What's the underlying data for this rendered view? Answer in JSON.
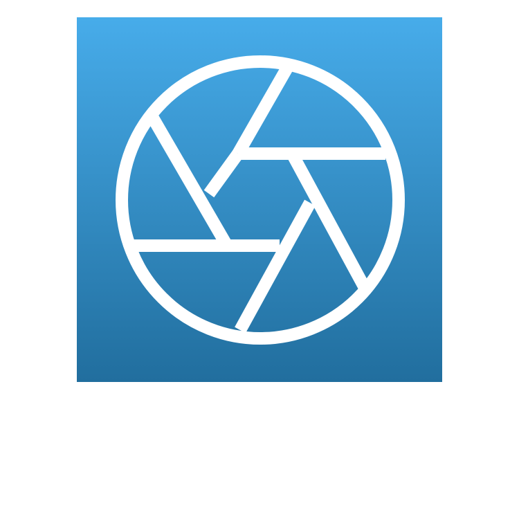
{
  "icon": {
    "name": "camera-aperture-icon",
    "colors": {
      "gradient_top": "#47acea",
      "gradient_bottom": "#216e9e",
      "glyph": "#ffffff",
      "page_background": "#ffffff"
    }
  }
}
